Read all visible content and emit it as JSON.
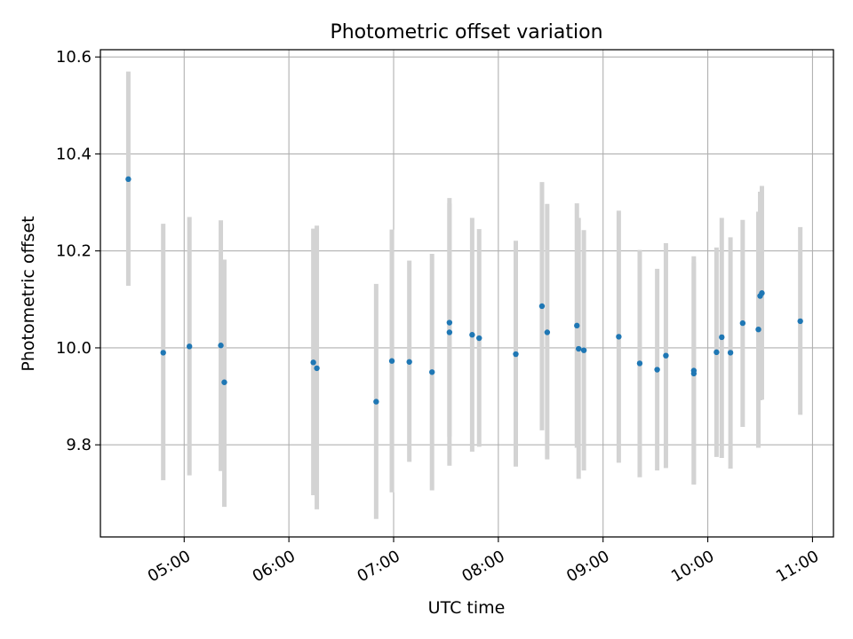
{
  "chart_data": {
    "type": "scatter",
    "title": "Photometric offset variation",
    "xlabel": "UTC time",
    "ylabel": "Photometric offset",
    "x_axis_type": "time",
    "xlim": [
      "04:12",
      "11:12"
    ],
    "ylim": [
      9.61,
      10.615
    ],
    "xticks": [
      "05:00",
      "06:00",
      "07:00",
      "08:00",
      "09:00",
      "10:00",
      "11:00"
    ],
    "yticks": [
      9.8,
      10.0,
      10.2,
      10.4,
      10.6
    ],
    "ytick_labels": [
      "9.8",
      "10.0",
      "10.2",
      "10.4",
      "10.6"
    ],
    "grid": true,
    "marker_color": "#1f77b4",
    "errorbar_color": "#d3d3d3",
    "series": [
      {
        "points": [
          {
            "t": "04:28",
            "y": 10.348,
            "lo": 10.128,
            "hi": 10.57
          },
          {
            "t": "04:48",
            "y": 9.99,
            "lo": 9.727,
            "hi": 10.256
          },
          {
            "t": "05:03",
            "y": 10.003,
            "lo": 9.737,
            "hi": 10.27
          },
          {
            "t": "05:21",
            "y": 10.005,
            "lo": 9.746,
            "hi": 10.263
          },
          {
            "t": "05:23",
            "y": 9.929,
            "lo": 9.672,
            "hi": 10.182
          },
          {
            "t": "06:14",
            "y": 9.97,
            "lo": 9.696,
            "hi": 10.246
          },
          {
            "t": "06:16",
            "y": 9.958,
            "lo": 9.667,
            "hi": 10.252
          },
          {
            "t": "06:50",
            "y": 9.889,
            "lo": 9.647,
            "hi": 10.132
          },
          {
            "t": "06:59",
            "y": 9.973,
            "lo": 9.702,
            "hi": 10.244
          },
          {
            "t": "07:09",
            "y": 9.971,
            "lo": 9.765,
            "hi": 10.18
          },
          {
            "t": "07:22",
            "y": 9.95,
            "lo": 9.706,
            "hi": 10.194
          },
          {
            "t": "07:32",
            "y": 10.052,
            "lo": 9.817,
            "hi": 10.298
          },
          {
            "t": "07:32",
            "y": 10.032,
            "lo": 9.757,
            "hi": 10.309
          },
          {
            "t": "07:45",
            "y": 10.027,
            "lo": 9.786,
            "hi": 10.268
          },
          {
            "t": "07:49",
            "y": 10.02,
            "lo": 9.796,
            "hi": 10.245
          },
          {
            "t": "08:10",
            "y": 9.987,
            "lo": 9.755,
            "hi": 10.221
          },
          {
            "t": "08:25",
            "y": 10.086,
            "lo": 9.83,
            "hi": 10.342
          },
          {
            "t": "08:28",
            "y": 10.032,
            "lo": 9.77,
            "hi": 10.297
          },
          {
            "t": "08:45",
            "y": 10.046,
            "lo": 9.794,
            "hi": 10.298
          },
          {
            "t": "08:46",
            "y": 9.998,
            "lo": 9.73,
            "hi": 10.268
          },
          {
            "t": "08:49",
            "y": 9.995,
            "lo": 9.747,
            "hi": 10.243
          },
          {
            "t": "09:09",
            "y": 10.023,
            "lo": 9.763,
            "hi": 10.283
          },
          {
            "t": "09:21",
            "y": 9.968,
            "lo": 9.733,
            "hi": 10.202
          },
          {
            "t": "09:31",
            "y": 9.955,
            "lo": 9.747,
            "hi": 10.163
          },
          {
            "t": "09:36",
            "y": 9.984,
            "lo": 9.752,
            "hi": 10.216
          },
          {
            "t": "09:52",
            "y": 9.953,
            "lo": 9.719,
            "hi": 10.189
          },
          {
            "t": "09:52",
            "y": 9.947,
            "lo": 9.718,
            "hi": 10.176
          },
          {
            "t": "10:05",
            "y": 9.991,
            "lo": 9.775,
            "hi": 10.207
          },
          {
            "t": "10:08",
            "y": 10.022,
            "lo": 9.773,
            "hi": 10.268
          },
          {
            "t": "10:13",
            "y": 9.99,
            "lo": 9.751,
            "hi": 10.228
          },
          {
            "t": "10:20",
            "y": 10.051,
            "lo": 9.837,
            "hi": 10.264
          },
          {
            "t": "10:29",
            "y": 10.038,
            "lo": 9.794,
            "hi": 10.281
          },
          {
            "t": "10:30",
            "y": 10.107,
            "lo": 9.892,
            "hi": 10.322
          },
          {
            "t": "10:31",
            "y": 10.113,
            "lo": 9.893,
            "hi": 10.334
          },
          {
            "t": "10:53",
            "y": 10.055,
            "lo": 9.862,
            "hi": 10.249
          }
        ]
      }
    ]
  }
}
